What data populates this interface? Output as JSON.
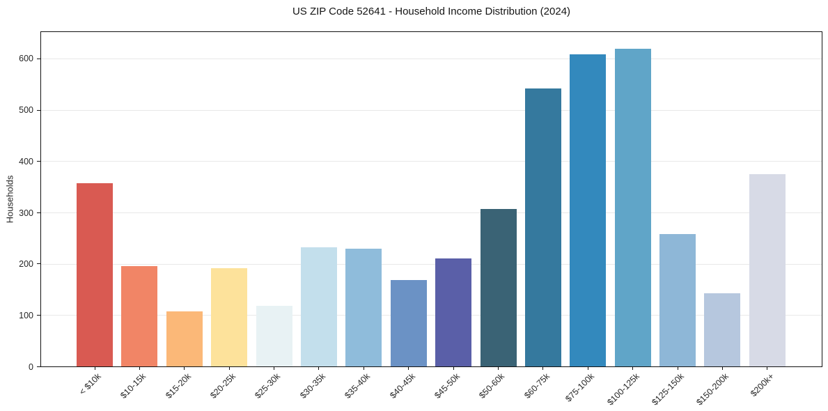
{
  "chart_data": {
    "type": "bar",
    "title": "US ZIP Code 52641 - Household Income Distribution (2024)",
    "xlabel": "",
    "ylabel": "Households",
    "categories": [
      "< $10k",
      "$10-15k",
      "$15-20k",
      "$20-25k",
      "$25-30k",
      "$30-35k",
      "$35-40k",
      "$40-45k",
      "$45-50k",
      "$50-60k",
      "$60-75k",
      "$75-100k",
      "$100-125k",
      "$125-150k",
      "$150-200k",
      "$200k+"
    ],
    "values": [
      358,
      196,
      108,
      192,
      119,
      233,
      230,
      169,
      211,
      307,
      543,
      610,
      621,
      258,
      143,
      375
    ],
    "bar_colors": [
      "#d95a52",
      "#f18566",
      "#fbb878",
      "#fde29b",
      "#e8f2f4",
      "#c3dfec",
      "#8fbcdb",
      "#6b92c5",
      "#5a5fa8",
      "#3a6375",
      "#35799e",
      "#3389bd",
      "#60a5c8",
      "#8eb7d7",
      "#b6c7de",
      "#d7dae6"
    ],
    "ylim": [
      0,
      653
    ],
    "yticks": [
      0,
      100,
      200,
      300,
      400,
      500,
      600
    ],
    "grid": "horizontal",
    "legend": "none",
    "x_tick_rotation": 45
  },
  "colors": {
    "background": "#ffffff",
    "spine": "#111111",
    "grid": "#e8e8e8",
    "tick_text": "#262626",
    "title_text": "#141414"
  }
}
